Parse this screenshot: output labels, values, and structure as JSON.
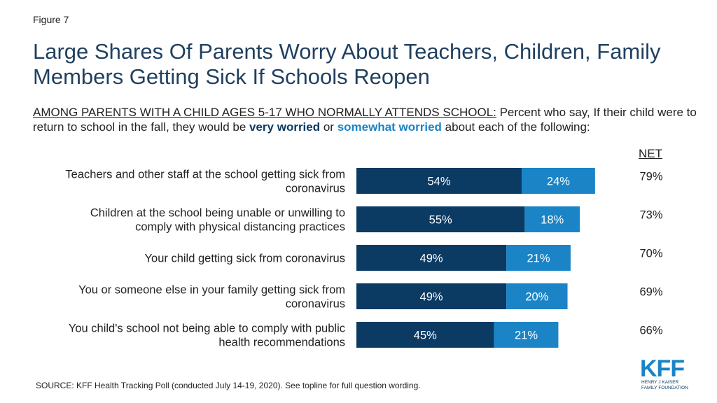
{
  "figure_label": "Figure 7",
  "title": "Large Shares Of Parents Worry About Teachers, Children, Family Members Getting Sick If Schools Reopen",
  "subtitle": {
    "prefix": "AMONG PARENTS WITH A CHILD AGES 5-17 WHO NORMALLY ATTENDS SCHOOL:",
    "part1": " Percent who say, If their child were to return to school in the fall, they would be ",
    "very": "very worried",
    "or": " or ",
    "somewhat": "somewhat worried",
    "part2": " about each of the following:"
  },
  "net_header": "NET",
  "source": "SOURCE: KFF Health Tracking Poll (conducted July 14-19, 2020). See topline for full question wording.",
  "logo": {
    "main": "KFF",
    "line1": "HENRY J KAISER",
    "line2": "FAMILY FOUNDATION"
  },
  "colors": {
    "very_worried": "#0b3a63",
    "somewhat_worried": "#1a84c7",
    "title": "#1f3f5f"
  },
  "chart_data": {
    "type": "bar",
    "orientation": "horizontal",
    "stacked": true,
    "categories": [
      [
        "Teachers and other staff at the school getting sick from",
        "coronavirus"
      ],
      [
        "Children at the school being unable or unwilling to",
        "comply with physical distancing practices"
      ],
      [
        "Your child getting sick from coronavirus"
      ],
      [
        "You or someone else in your family getting sick from",
        "coronavirus"
      ],
      [
        "You child's school not being able to comply with public",
        "health recommendations"
      ]
    ],
    "series": [
      {
        "name": "very worried",
        "values": [
          54,
          55,
          49,
          49,
          45
        ],
        "labels": [
          "54%",
          "55%",
          "49%",
          "49%",
          "45%"
        ]
      },
      {
        "name": "somewhat worried",
        "values": [
          24,
          18,
          21,
          20,
          21
        ],
        "labels": [
          "24%",
          "18%",
          "21%",
          "20%",
          "21%"
        ]
      }
    ],
    "net": {
      "values": [
        79,
        73,
        70,
        69,
        66
      ],
      "labels": [
        "79%",
        "73%",
        "70%",
        "69%",
        "66%"
      ]
    },
    "xlim": [
      0,
      100
    ]
  }
}
